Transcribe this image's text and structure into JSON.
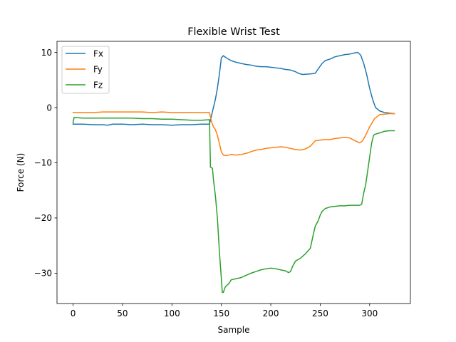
{
  "chart_data": {
    "type": "line",
    "title": "Flexible Wrist Test",
    "xlabel": "Sample",
    "ylabel": "Force (N)",
    "xlim": [
      -16.25,
      341.25
    ],
    "ylim": [
      -35.5,
      12.0
    ],
    "xticks": [
      0,
      50,
      100,
      150,
      200,
      250,
      300
    ],
    "yticks": [
      10,
      0,
      -10,
      -20,
      -30
    ],
    "ytick_labels": [
      "10",
      "0",
      "−10",
      "−20",
      "−30"
    ],
    "grid": false,
    "legend_position": "top-left",
    "series": [
      {
        "name": "Fx",
        "color": "#1f77b4",
        "points": [
          [
            0,
            -3.0
          ],
          [
            10,
            -3.0
          ],
          [
            20,
            -3.1
          ],
          [
            30,
            -3.1
          ],
          [
            35,
            -3.2
          ],
          [
            40,
            -3.0
          ],
          [
            50,
            -3.0
          ],
          [
            60,
            -3.1
          ],
          [
            70,
            -3.0
          ],
          [
            80,
            -3.1
          ],
          [
            90,
            -3.1
          ],
          [
            100,
            -3.2
          ],
          [
            110,
            -3.1
          ],
          [
            120,
            -3.1
          ],
          [
            130,
            -3.0
          ],
          [
            138,
            -3.0
          ],
          [
            140,
            -1.5
          ],
          [
            142,
            0.0
          ],
          [
            144,
            1.5
          ],
          [
            146,
            3.5
          ],
          [
            148,
            6.0
          ],
          [
            150,
            9.0
          ],
          [
            152,
            9.4
          ],
          [
            155,
            9.0
          ],
          [
            160,
            8.5
          ],
          [
            165,
            8.2
          ],
          [
            170,
            8.0
          ],
          [
            175,
            7.8
          ],
          [
            180,
            7.7
          ],
          [
            185,
            7.5
          ],
          [
            190,
            7.4
          ],
          [
            195,
            7.4
          ],
          [
            200,
            7.3
          ],
          [
            205,
            7.2
          ],
          [
            210,
            7.1
          ],
          [
            215,
            6.9
          ],
          [
            220,
            6.8
          ],
          [
            225,
            6.5
          ],
          [
            228,
            6.2
          ],
          [
            232,
            6.0
          ],
          [
            240,
            6.1
          ],
          [
            245,
            6.2
          ],
          [
            248,
            7.0
          ],
          [
            252,
            8.0
          ],
          [
            255,
            8.5
          ],
          [
            260,
            8.8
          ],
          [
            265,
            9.2
          ],
          [
            270,
            9.4
          ],
          [
            275,
            9.6
          ],
          [
            280,
            9.7
          ],
          [
            285,
            9.9
          ],
          [
            288,
            10.0
          ],
          [
            291,
            9.5
          ],
          [
            294,
            8.0
          ],
          [
            297,
            6.0
          ],
          [
            300,
            3.5
          ],
          [
            303,
            1.5
          ],
          [
            306,
            0.0
          ],
          [
            310,
            -0.6
          ],
          [
            315,
            -0.9
          ],
          [
            320,
            -1.0
          ],
          [
            325,
            -1.1
          ]
        ]
      },
      {
        "name": "Fy",
        "color": "#ff7f0e",
        "points": [
          [
            0,
            -0.9
          ],
          [
            10,
            -0.9
          ],
          [
            20,
            -0.9
          ],
          [
            30,
            -0.8
          ],
          [
            40,
            -0.8
          ],
          [
            50,
            -0.8
          ],
          [
            60,
            -0.8
          ],
          [
            70,
            -0.8
          ],
          [
            80,
            -0.9
          ],
          [
            90,
            -0.8
          ],
          [
            100,
            -0.9
          ],
          [
            110,
            -0.9
          ],
          [
            120,
            -0.9
          ],
          [
            130,
            -0.9
          ],
          [
            138,
            -0.9
          ],
          [
            140,
            -2.5
          ],
          [
            142,
            -3.5
          ],
          [
            144,
            -4.0
          ],
          [
            146,
            -5.0
          ],
          [
            148,
            -6.5
          ],
          [
            150,
            -8.0
          ],
          [
            152,
            -8.6
          ],
          [
            155,
            -8.7
          ],
          [
            160,
            -8.5
          ],
          [
            165,
            -8.6
          ],
          [
            170,
            -8.5
          ],
          [
            175,
            -8.3
          ],
          [
            180,
            -8.0
          ],
          [
            185,
            -7.7
          ],
          [
            190,
            -7.6
          ],
          [
            195,
            -7.4
          ],
          [
            200,
            -7.3
          ],
          [
            205,
            -7.2
          ],
          [
            210,
            -7.1
          ],
          [
            215,
            -7.2
          ],
          [
            220,
            -7.4
          ],
          [
            225,
            -7.6
          ],
          [
            230,
            -7.7
          ],
          [
            235,
            -7.5
          ],
          [
            240,
            -7.0
          ],
          [
            245,
            -6.0
          ],
          [
            250,
            -5.9
          ],
          [
            255,
            -5.8
          ],
          [
            260,
            -5.8
          ],
          [
            265,
            -5.6
          ],
          [
            270,
            -5.5
          ],
          [
            275,
            -5.4
          ],
          [
            280,
            -5.5
          ],
          [
            285,
            -6.0
          ],
          [
            290,
            -6.4
          ],
          [
            293,
            -6.0
          ],
          [
            296,
            -5.0
          ],
          [
            300,
            -3.5
          ],
          [
            305,
            -2.0
          ],
          [
            310,
            -1.3
          ],
          [
            315,
            -1.2
          ],
          [
            320,
            -1.1
          ],
          [
            325,
            -1.1
          ]
        ]
      },
      {
        "name": "Fz",
        "color": "#2ca02c",
        "points": [
          [
            0,
            -2.8
          ],
          [
            1,
            -1.8
          ],
          [
            10,
            -1.9
          ],
          [
            20,
            -1.9
          ],
          [
            30,
            -1.9
          ],
          [
            40,
            -1.9
          ],
          [
            50,
            -1.9
          ],
          [
            60,
            -1.9
          ],
          [
            70,
            -2.0
          ],
          [
            80,
            -2.0
          ],
          [
            90,
            -2.1
          ],
          [
            100,
            -2.1
          ],
          [
            110,
            -2.2
          ],
          [
            120,
            -2.3
          ],
          [
            130,
            -2.3
          ],
          [
            138,
            -2.2
          ],
          [
            139,
            -10.8
          ],
          [
            141,
            -11.0
          ],
          [
            142,
            -13.0
          ],
          [
            144,
            -16.0
          ],
          [
            146,
            -20.0
          ],
          [
            148,
            -26.0
          ],
          [
            150,
            -31.0
          ],
          [
            151,
            -33.5
          ],
          [
            152,
            -33.5
          ],
          [
            154,
            -32.5
          ],
          [
            158,
            -31.8
          ],
          [
            160,
            -31.2
          ],
          [
            165,
            -31.0
          ],
          [
            170,
            -30.8
          ],
          [
            175,
            -30.4
          ],
          [
            180,
            -30.0
          ],
          [
            185,
            -29.7
          ],
          [
            190,
            -29.4
          ],
          [
            195,
            -29.2
          ],
          [
            200,
            -29.1
          ],
          [
            205,
            -29.2
          ],
          [
            210,
            -29.4
          ],
          [
            215,
            -29.6
          ],
          [
            218,
            -29.9
          ],
          [
            220,
            -29.7
          ],
          [
            222,
            -28.8
          ],
          [
            225,
            -27.8
          ],
          [
            230,
            -27.3
          ],
          [
            235,
            -26.5
          ],
          [
            240,
            -25.5
          ],
          [
            243,
            -23.0
          ],
          [
            245,
            -21.5
          ],
          [
            248,
            -20.5
          ],
          [
            250,
            -19.5
          ],
          [
            252,
            -18.8
          ],
          [
            255,
            -18.3
          ],
          [
            260,
            -18.0
          ],
          [
            265,
            -17.9
          ],
          [
            270,
            -17.8
          ],
          [
            275,
            -17.8
          ],
          [
            280,
            -17.7
          ],
          [
            285,
            -17.7
          ],
          [
            290,
            -17.7
          ],
          [
            292,
            -17.5
          ],
          [
            294,
            -15.5
          ],
          [
            296,
            -14.0
          ],
          [
            298,
            -11.5
          ],
          [
            300,
            -9.0
          ],
          [
            302,
            -6.5
          ],
          [
            304,
            -5.0
          ],
          [
            306,
            -4.8
          ],
          [
            310,
            -4.6
          ],
          [
            315,
            -4.3
          ],
          [
            320,
            -4.2
          ],
          [
            325,
            -4.2
          ]
        ]
      }
    ]
  }
}
